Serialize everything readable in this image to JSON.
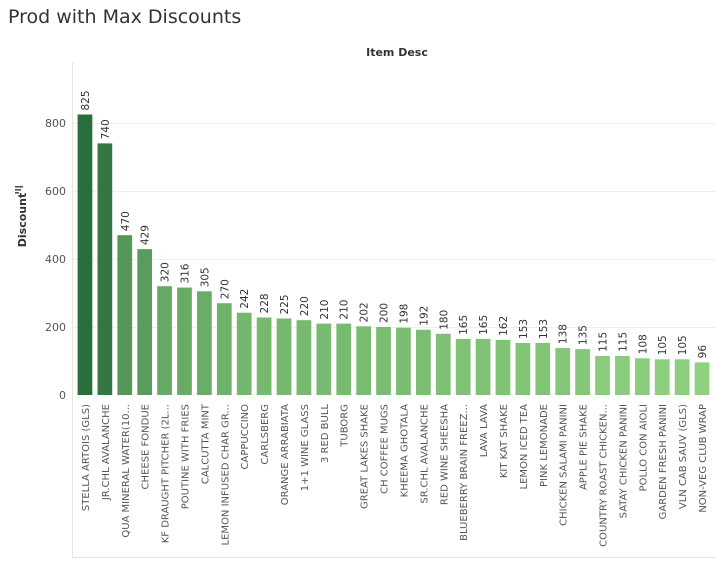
{
  "title": "Prod with Max Discounts",
  "chart_data": {
    "type": "bar",
    "title": "Prod with Max Discounts",
    "xheader": "Item Desc",
    "ylabel": "Discount",
    "ylim": [
      0,
      880
    ],
    "yticks": [
      0,
      200,
      400,
      600,
      800
    ],
    "categories": [
      "STELLA ARTOIS (GLS)",
      "JR.CHL AVALANCHE",
      "QUA MINERAL WATER(10...",
      "CHEESE FONDUE",
      "KF DRAUGHT PITCHER (2L...",
      "POUTINE WITH FRIES",
      "CALCUTTA MINT",
      "LEMON INFUSED CHAR GR...",
      "CAPPUCCINO",
      "CARLSBERG",
      "ORANGE ARRABIATA",
      "1+1 WINE GLASS",
      "3 RED BULL",
      "TUBORG",
      "GREAT LAKES SHAKE",
      "CH COFFEE MUGS",
      "KHEEMA GHOTALA",
      "SR.CHL AVALANCHE",
      "RED WINE SHEESHA",
      "BLUEBERRY BRAIN FREEZ...",
      "LAVA LAVA",
      "KIT KAT SHAKE",
      "LEMON ICED TEA",
      "PINK LEMONADE",
      "CHICKEN SALAMI PANINI",
      "APPLE PIE SHAKE",
      "COUNTRY ROAST CHICKEN...",
      "SATAY CHICKEN PANINI",
      "POLLO CON AIOLI",
      "GARDEN FRESH PANINI",
      "VLN CAB SAUV (GLS)",
      "NON-VEG CLUB WRAP"
    ],
    "values": [
      825,
      740,
      470,
      429,
      320,
      316,
      305,
      270,
      242,
      228,
      225,
      220,
      210,
      210,
      202,
      200,
      198,
      192,
      180,
      165,
      165,
      162,
      153,
      153,
      138,
      135,
      115,
      115,
      108,
      105,
      105,
      96
    ],
    "color_scale": {
      "low": "#8fd17f",
      "high": "#2a6e3c"
    },
    "grid": true,
    "legend": "none"
  }
}
